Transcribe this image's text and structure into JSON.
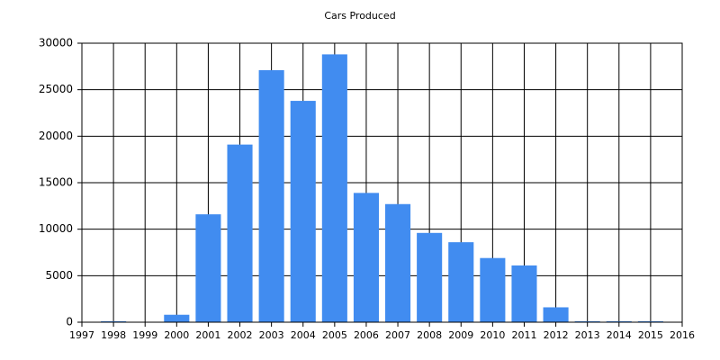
{
  "chart_data": {
    "type": "bar",
    "title": "Cars Produced",
    "x": [
      1998,
      1999,
      2000,
      2001,
      2002,
      2003,
      2004,
      2005,
      2006,
      2007,
      2008,
      2009,
      2010,
      2011,
      2012,
      2013,
      2014,
      2015
    ],
    "values": [
      100,
      0,
      800,
      11600,
      19100,
      27100,
      23800,
      28800,
      13900,
      12700,
      9600,
      8600,
      6900,
      6100,
      1600,
      100,
      100,
      100
    ],
    "color": "#418cf0",
    "xlim": [
      1997,
      2016
    ],
    "xticks": [
      1997,
      1998,
      1999,
      2000,
      2001,
      2002,
      2003,
      2004,
      2005,
      2006,
      2007,
      2008,
      2009,
      2010,
      2011,
      2012,
      2013,
      2014,
      2015,
      2016
    ],
    "ylim": [
      0,
      30000
    ],
    "yticks": [
      0,
      5000,
      10000,
      15000,
      20000,
      25000,
      30000
    ],
    "grid": true
  }
}
